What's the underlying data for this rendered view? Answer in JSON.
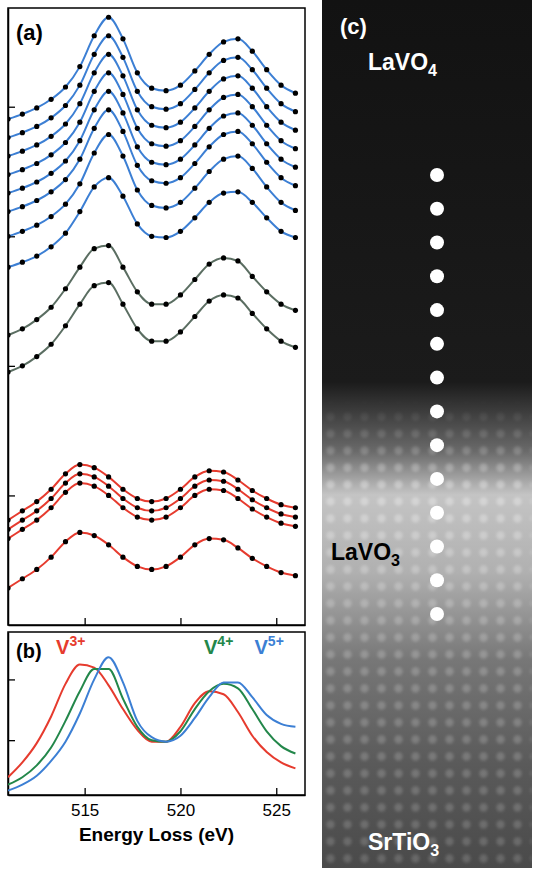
{
  "chart_data": [
    {
      "type": "line",
      "title": "(a)",
      "x": [
        511,
        511.75,
        512.5,
        513.25,
        514,
        514.75,
        515.5,
        516.25,
        517,
        517.75,
        518.5,
        519.25,
        520,
        520.75,
        521.5,
        522.25,
        523,
        523.75,
        524.5,
        525.25,
        526
      ],
      "xlim": [
        511,
        526.5
      ],
      "xticks": [
        515,
        520,
        525
      ],
      "ylim": [
        0,
        100
      ],
      "yticks": [
        21,
        42,
        63,
        84
      ],
      "tick_labels": false,
      "marker": "circle",
      "series": [
        {
          "color": "#3c7fd4",
          "values": [
            82,
            82.8,
            83.8,
            85.2,
            87.2,
            90.5,
            95.5,
            98.5,
            95,
            89.5,
            87,
            86.6,
            87.5,
            89.8,
            92.5,
            94.5,
            95,
            93,
            90,
            87.5,
            86.2
          ]
        },
        {
          "color": "#3c7fd4",
          "values": [
            79,
            79.8,
            80.8,
            82.2,
            84.2,
            87.5,
            92.5,
            95.5,
            92,
            86.5,
            84,
            83.6,
            84.5,
            86.8,
            89.5,
            91.5,
            92,
            90,
            87,
            84.5,
            83.2
          ]
        },
        {
          "color": "#3c7fd4",
          "values": [
            76,
            76.8,
            77.8,
            79.2,
            81.2,
            84.5,
            89.5,
            92.5,
            89,
            83.5,
            81,
            80.6,
            81.5,
            83.8,
            86.5,
            88.5,
            89,
            87,
            84,
            81.5,
            80.2
          ]
        },
        {
          "color": "#3c7fd4",
          "values": [
            73,
            73.8,
            74.8,
            76.2,
            78.2,
            81.5,
            86.5,
            89.5,
            86,
            80.5,
            78,
            77.6,
            78.5,
            80.8,
            83.5,
            85.5,
            86,
            84,
            81,
            78.5,
            77.2
          ]
        },
        {
          "color": "#3c7fd4",
          "values": [
            70,
            70.8,
            71.8,
            73.2,
            75.2,
            78.5,
            83.5,
            86.5,
            83,
            77.5,
            75,
            74.6,
            75.5,
            77.8,
            80.5,
            82.5,
            83,
            81,
            78,
            75.5,
            74.2
          ]
        },
        {
          "color": "#3c7fd4",
          "values": [
            67,
            67.8,
            68.8,
            70.2,
            72.2,
            75.5,
            80.5,
            83.5,
            80,
            74.5,
            72,
            71.6,
            72.5,
            74.8,
            77.5,
            79.5,
            80,
            78,
            75,
            72.5,
            71.2
          ]
        },
        {
          "color": "#3c7fd4",
          "values": [
            63,
            63.8,
            64.8,
            66.2,
            68.2,
            71.5,
            76.5,
            79.5,
            76,
            70.5,
            68,
            67.6,
            68.5,
            70.8,
            73.5,
            75.5,
            76,
            74,
            71,
            68.5,
            67.2
          ]
        },
        {
          "color": "#3c7fd4",
          "values": [
            58,
            58.8,
            59.8,
            61.3,
            63.5,
            67,
            71,
            72.5,
            69.5,
            65,
            63,
            62.8,
            63.8,
            66,
            68.5,
            70,
            70.2,
            68.5,
            66,
            63.8,
            62.8
          ]
        },
        {
          "color": "#5b6e62",
          "values": [
            47,
            48,
            49.5,
            51.5,
            54.5,
            58,
            61,
            61.5,
            58,
            54,
            52,
            52,
            53.5,
            56,
            58.5,
            59.5,
            59,
            56.5,
            54,
            52,
            51
          ]
        },
        {
          "color": "#5b6e62",
          "values": [
            41,
            42,
            43.5,
            45.5,
            48.5,
            52,
            55,
            55.5,
            52,
            48,
            46,
            46,
            47.5,
            50,
            52.5,
            53.5,
            53,
            50.5,
            48,
            46,
            45
          ]
        },
        {
          "color": "#e63b2e",
          "values": [
            17,
            18.5,
            20,
            22,
            24.5,
            26,
            25.5,
            24,
            22,
            20.5,
            20,
            20.5,
            22,
            24,
            25,
            24.8,
            23.5,
            21.8,
            20.5,
            19.5,
            19
          ]
        },
        {
          "color": "#e63b2e",
          "values": [
            15.5,
            17,
            18.5,
            20.5,
            23,
            24.5,
            24,
            22.5,
            20.5,
            19,
            18.5,
            19,
            20.5,
            22.5,
            23.5,
            23.3,
            22,
            20.3,
            19,
            18,
            17.5
          ]
        },
        {
          "color": "#e63b2e",
          "values": [
            14,
            15.5,
            17,
            19,
            21.5,
            23,
            22.5,
            21,
            19,
            17.5,
            17,
            17.5,
            19,
            21,
            22,
            21.8,
            20.5,
            18.8,
            17.5,
            16.5,
            16
          ]
        },
        {
          "color": "#e63b2e",
          "values": [
            6,
            7.5,
            9,
            11,
            13.5,
            15,
            14.5,
            13,
            11,
            9.5,
            9,
            9.5,
            11,
            13,
            14,
            13.8,
            12.5,
            10.8,
            9.5,
            8.5,
            8
          ]
        }
      ]
    },
    {
      "type": "line",
      "title": "(b)",
      "xlabel": "Energy Loss (eV)",
      "x": [
        511,
        511.75,
        512.5,
        513.25,
        514,
        514.75,
        515.5,
        516.25,
        517,
        517.75,
        518.5,
        519.25,
        520,
        520.75,
        521.5,
        522.25,
        523,
        523.75,
        524.5,
        525.25,
        526
      ],
      "xlim": [
        511,
        526.5
      ],
      "xticks": [
        515,
        520,
        525
      ],
      "ylim": [
        0,
        11
      ],
      "yticks": [
        3.7,
        7.8
      ],
      "tick_labels": "x",
      "series": [
        {
          "name": "V3+",
          "color": "#e63b2e",
          "values": [
            1.2,
            2.2,
            3.5,
            5.3,
            7.5,
            8.8,
            8.6,
            7.4,
            5.8,
            4.4,
            3.6,
            3.6,
            4.6,
            6.2,
            7.0,
            6.8,
            5.6,
            4.0,
            2.9,
            2.2,
            1.8
          ]
        },
        {
          "name": "V4+",
          "color": "#23874a",
          "values": [
            0.7,
            1.2,
            2.0,
            3.2,
            5.0,
            7.0,
            8.5,
            8.5,
            6.5,
            4.6,
            3.7,
            3.6,
            4.3,
            5.8,
            7.0,
            7.5,
            7.2,
            5.8,
            4.3,
            3.3,
            2.8
          ]
        },
        {
          "name": "V5+",
          "color": "#3c7fd4",
          "values": [
            0.3,
            0.7,
            1.3,
            2.3,
            3.6,
            5.5,
            7.8,
            9.3,
            7.6,
            5.0,
            3.9,
            3.6,
            4.0,
            5.2,
            6.6,
            7.6,
            7.6,
            6.6,
            5.4,
            4.8,
            4.6
          ]
        }
      ]
    },
    {
      "type": "image",
      "title": "(c)",
      "labels": [
        "LaVO4",
        "LaVO3",
        "SrTiO3"
      ]
    }
  ]
}
